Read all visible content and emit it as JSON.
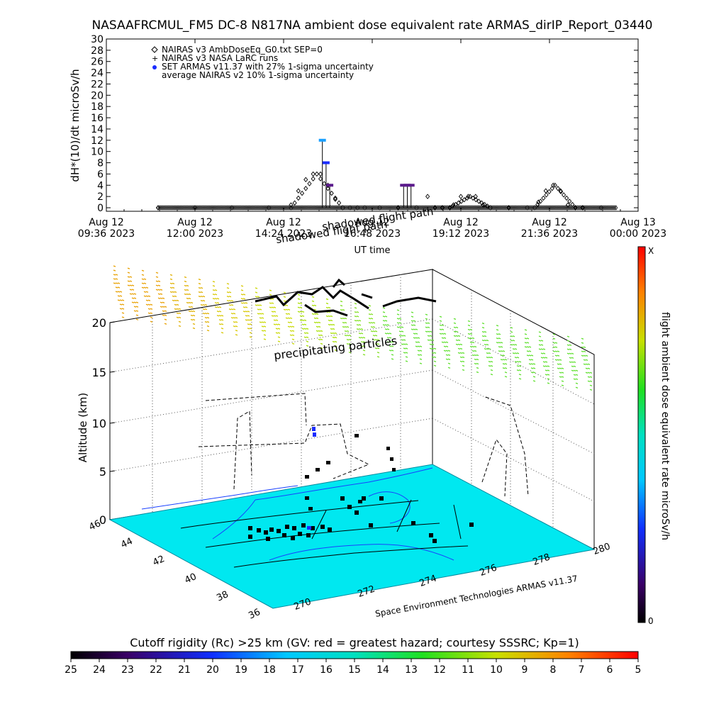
{
  "title": "NASAAFRCMUL_FM5 DC-8   N817NA ambient dose equivalent rate ARMAS_dirIP_Report_03440",
  "top_chart": {
    "ylabel": "dH*(10)/dt microSv/h",
    "xlabel": "UT time",
    "y_ticks": [
      "0",
      "2",
      "4",
      "6",
      "8",
      "10",
      "12",
      "14",
      "16",
      "18",
      "20",
      "22",
      "24",
      "26",
      "28",
      "30"
    ],
    "x_ticks": [
      {
        "line1": "Aug 12",
        "line2": "09:36 2023"
      },
      {
        "line1": "Aug 12",
        "line2": "12:00 2023"
      },
      {
        "line1": "Aug 12",
        "line2": "14:24 2023"
      },
      {
        "line1": "Aug 12",
        "line2": "16:48 2023"
      },
      {
        "line1": "Aug 12",
        "line2": "19:12 2023"
      },
      {
        "line1": "Aug 12",
        "line2": "21:36 2023"
      },
      {
        "line1": "Aug 13",
        "line2": "00:00 2023"
      }
    ],
    "legend": [
      {
        "symbol": "diamond",
        "text": "NAIRAS v3 AmbDoseEq_G0.txt SEP=0"
      },
      {
        "symbol": "plus",
        "text": "NAIRAS v3 NASA LaRC runs"
      },
      {
        "symbol": "blue-dot",
        "text": "SET ARMAS v11.37 with 27% 1-sigma uncertainty"
      },
      {
        "symbol": "none",
        "text": "average NAIRAS v2 10% 1-sigma uncertainty"
      }
    ]
  },
  "chart_data": {
    "type": "scatter",
    "x_unit": "UT hours since 2023-08-12 00:00",
    "xlim": [
      9.6,
      24.0
    ],
    "ylim": [
      0,
      30
    ],
    "series": [
      {
        "name": "NAIRAS v3 AmbDoseEq_G0.txt SEP=0",
        "x": [
          11.0,
          12.0,
          13.0,
          14.0,
          14.6,
          14.8,
          15.0,
          15.2,
          15.4,
          15.6,
          15.8,
          16.0,
          16.2,
          16.4,
          16.6,
          17.0,
          17.5,
          18.0,
          18.3,
          18.5,
          18.7,
          19.0,
          19.2,
          19.4,
          19.6,
          19.8,
          20.0,
          20.5,
          21.0,
          21.3,
          21.5,
          21.7,
          21.9,
          22.1,
          22.5,
          23.0
        ],
        "y": [
          0,
          0,
          0,
          0,
          0.5,
          3,
          5,
          6,
          6,
          4,
          1.5,
          0,
          0,
          0,
          0,
          0,
          0,
          0,
          2,
          0,
          0,
          0.5,
          2,
          2,
          2,
          0.5,
          0,
          0,
          0,
          1,
          3,
          4,
          3,
          0.5,
          0,
          0
        ]
      },
      {
        "name": "SET ARMAS v11.37 with 27% 1-sigma uncertainty",
        "x": [
          15.45,
          15.55,
          15.65,
          17.65,
          17.75,
          17.85
        ],
        "y": [
          12,
          8,
          4,
          4,
          4,
          4
        ]
      }
    ]
  },
  "map3d": {
    "top_labels": [
      "shadowed flight path",
      "shadowed flight path"
    ],
    "precip_label": "precipitating particles",
    "z_label": "Altitude (km)",
    "z_ticks": [
      "0",
      "5",
      "10",
      "15",
      "20"
    ],
    "lat_ticks": [
      "46",
      "44",
      "42",
      "40",
      "38",
      "36"
    ],
    "lon_ticks": [
      "270",
      "272",
      "274",
      "276",
      "278",
      "280"
    ],
    "credit": "Space Environment Technologies ARMAS v11.37"
  },
  "right_colorbar": {
    "label": "flight ambient dose equivalent rate microSv/h",
    "top": "X",
    "bottom": "0"
  },
  "bottom_colorbar": {
    "title": "Cutoff rigidity (Rc) >25 km (GV: red = greatest hazard; courtesy SSSRC; Kp=1)",
    "ticks": [
      "25",
      "24",
      "23",
      "22",
      "21",
      "20",
      "19",
      "18",
      "17",
      "16",
      "15",
      "14",
      "13",
      "12",
      "11",
      "10",
      "9",
      "8",
      "7",
      "6",
      "5"
    ]
  }
}
